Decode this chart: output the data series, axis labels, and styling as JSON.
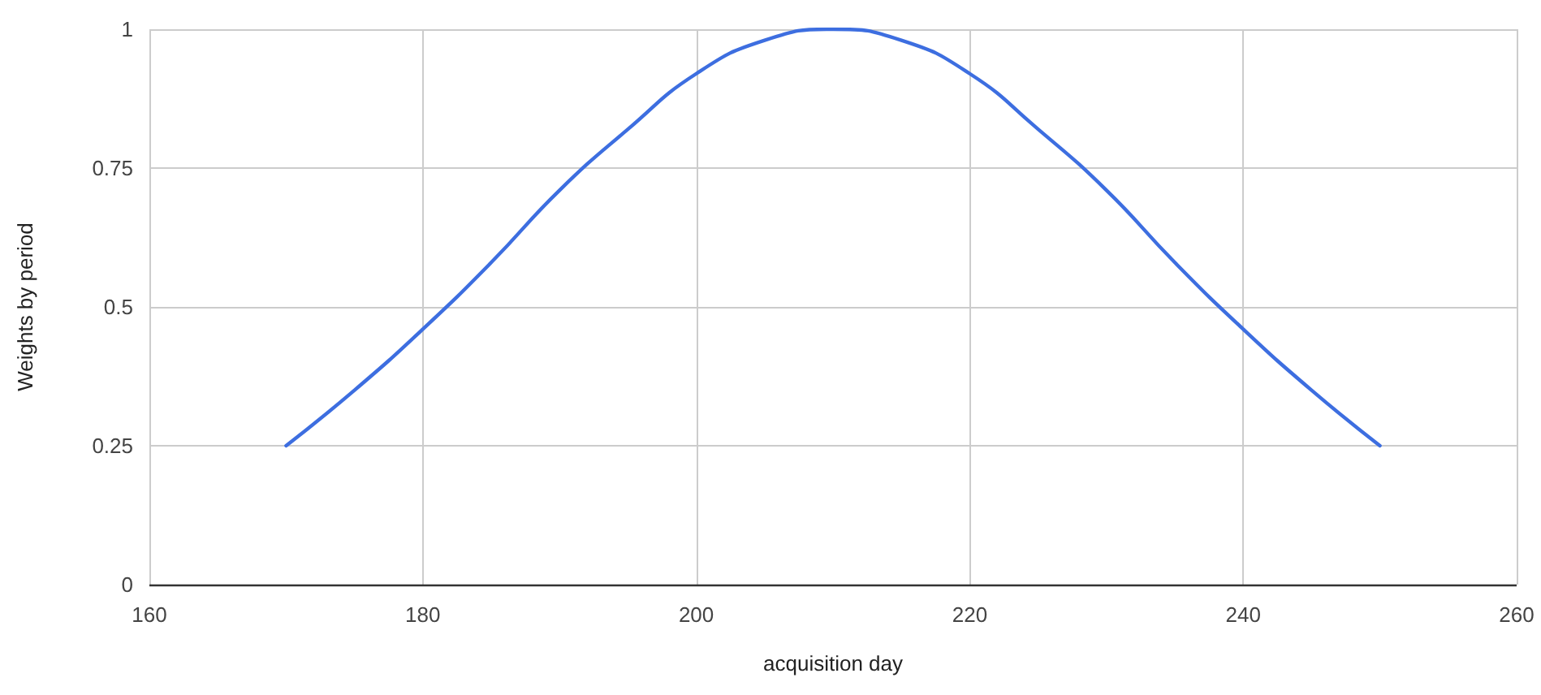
{
  "chart_data": {
    "type": "line",
    "xlabel": "acquisition day",
    "ylabel": "Weights by period",
    "x": [
      170,
      175,
      180,
      185,
      190,
      195,
      200,
      205,
      210,
      215,
      220,
      225,
      230,
      235,
      240,
      245,
      250
    ],
    "series": [
      {
        "color": "#3d6ee0",
        "values": [
          0.25,
          0.35,
          0.46,
          0.58,
          0.71,
          0.82,
          0.92,
          0.98,
          1,
          0.98,
          0.92,
          0.82,
          0.71,
          0.58,
          0.46,
          0.35,
          0.25
        ]
      }
    ],
    "xlim": [
      160,
      260
    ],
    "xticks": [
      160,
      180,
      200,
      220,
      240,
      260
    ],
    "ylim": [
      0,
      1
    ],
    "yticks": [
      0,
      0.25,
      0.5,
      0.75,
      1
    ],
    "grid": true,
    "marker": "none",
    "line_style": "solid"
  }
}
